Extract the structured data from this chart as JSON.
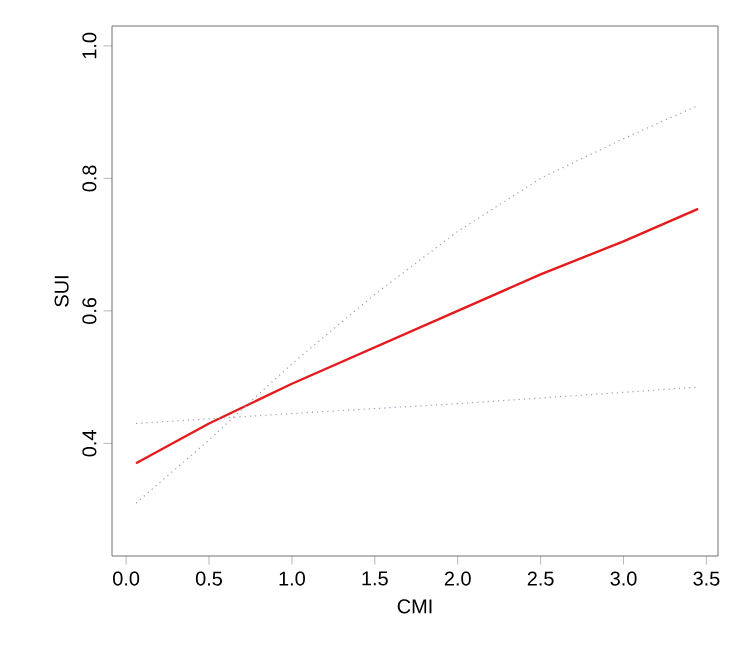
{
  "chart_data": {
    "type": "line",
    "xlabel": "CMI",
    "ylabel": "SUI",
    "xlim": [
      -0.085,
      3.57
    ],
    "ylim": [
      0.23,
      1.03
    ],
    "xticks": [
      {
        "value": 0,
        "label": "0.0"
      },
      0.5,
      {
        "value": 1,
        "label": "1.0"
      },
      1.5,
      {
        "value": 2,
        "label": "2.0"
      },
      2.5,
      {
        "value": 3,
        "label": "3.0"
      },
      3.5
    ],
    "yticks": [
      0.4,
      0.6,
      0.8,
      {
        "value": 1,
        "label": "1.0"
      }
    ],
    "grid": false,
    "series": [
      {
        "color": "#e41a1c",
        "line_style": "solid",
        "x": [
          0.06,
          0.5,
          1.0,
          1.5,
          2.0,
          2.5,
          3.0,
          3.45
        ],
        "values": [
          0.37,
          0.43,
          0.49,
          0.545,
          0.6,
          0.655,
          0.705,
          0.754
        ]
      },
      {
        "color": "#9a9ab8",
        "line_style": "dotted",
        "x": [
          0.06,
          0.5,
          0.65,
          1.0,
          1.5,
          2.0,
          2.5,
          3.0,
          3.45
        ],
        "values": [
          0.31,
          0.405,
          0.44,
          0.52,
          0.625,
          0.72,
          0.8,
          0.86,
          0.91
        ]
      },
      {
        "color": "#9a9ab8",
        "line_style": "dotted",
        "x": [
          0.06,
          1.0,
          2.0,
          3.0,
          3.45
        ],
        "values": [
          0.43,
          0.445,
          0.46,
          0.477,
          0.485
        ]
      }
    ]
  }
}
